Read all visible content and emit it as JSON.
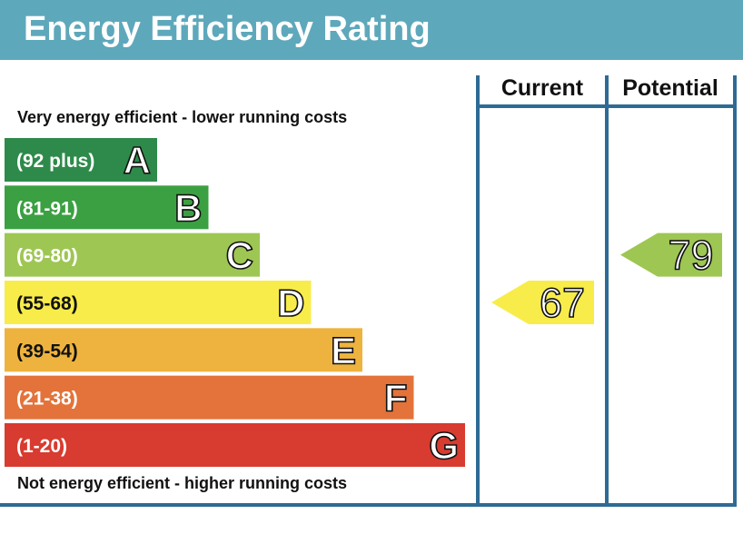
{
  "title": "Energy Efficiency Rating",
  "colors": {
    "header": "#5ea8bb",
    "frame": "#2e6b94"
  },
  "chart_data": {
    "type": "bar",
    "top_note": "Very energy efficient - lower running costs",
    "bottom_note": "Not energy efficient - higher running costs",
    "columns": [
      "Current",
      "Potential"
    ],
    "bands": [
      {
        "letter": "A",
        "range": "(92 plus)",
        "min": 92,
        "max": null,
        "color": "#2e8a4a"
      },
      {
        "letter": "B",
        "range": "(81-91)",
        "min": 81,
        "max": 91,
        "color": "#3ba042"
      },
      {
        "letter": "C",
        "range": "(69-80)",
        "min": 69,
        "max": 80,
        "color": "#9ec653"
      },
      {
        "letter": "D",
        "range": "(55-68)",
        "min": 55,
        "max": 68,
        "color": "#f8ec4a"
      },
      {
        "letter": "E",
        "range": "(39-54)",
        "min": 39,
        "max": 54,
        "color": "#eeb33f"
      },
      {
        "letter": "F",
        "range": "(21-38)",
        "min": 21,
        "max": 38,
        "color": "#e3733a"
      },
      {
        "letter": "G",
        "range": "(1-20)",
        "min": 1,
        "max": 20,
        "color": "#d83b2f"
      }
    ],
    "ratings": {
      "current": {
        "value": 67,
        "band": "D",
        "color": "#f8ec4a"
      },
      "potential": {
        "value": 79,
        "band": "C",
        "color": "#9ec653"
      }
    }
  }
}
